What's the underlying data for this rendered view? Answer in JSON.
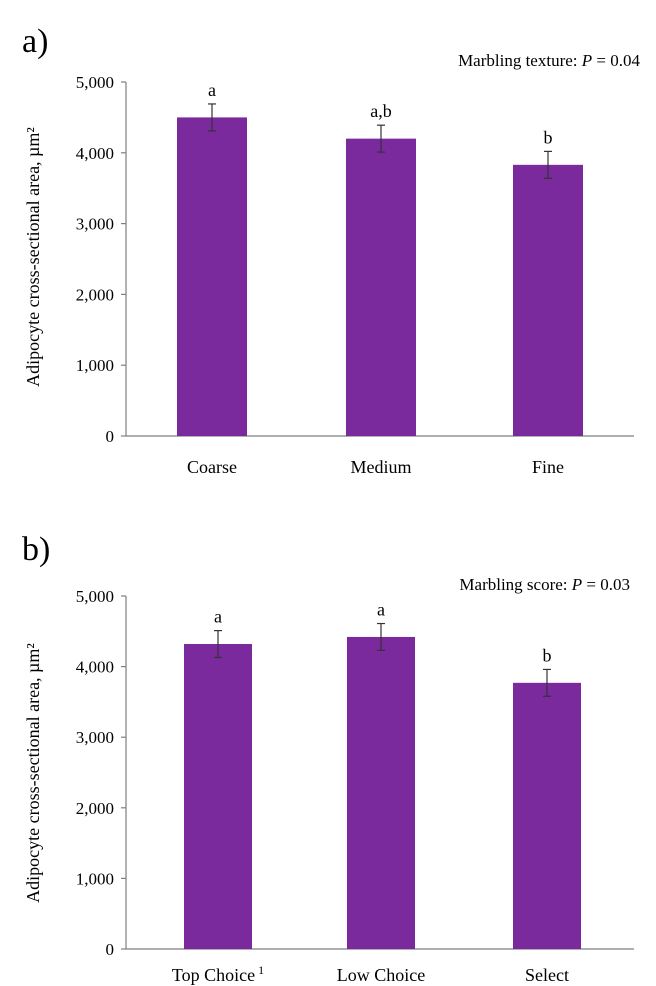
{
  "charts": [
    {
      "panel_label": "a)",
      "annotation_prefix": "Marbling texture: ",
      "annotation_p_symbol": "P",
      "annotation_p_value": " = 0.04"
    },
    {
      "panel_label": "b)",
      "annotation_prefix": "Marbling score: ",
      "annotation_p_symbol": "P",
      "annotation_p_value": " = 0.03"
    }
  ],
  "chart_data": [
    {
      "type": "bar",
      "categories": [
        "Coarse",
        "Medium",
        "Fine"
      ],
      "values": [
        4500,
        4200,
        3830
      ],
      "errors": [
        190,
        190,
        190
      ],
      "letters": [
        "a",
        "a,b",
        "b"
      ],
      "title": "",
      "xlabel": "",
      "ylabel": "Adipocyte cross-sectional area, µm²",
      "ylim": [
        0,
        5000
      ],
      "yticks": [
        0,
        1000,
        2000,
        3000,
        4000,
        5000
      ],
      "ytick_labels": [
        "0",
        "1,000",
        "2,000",
        "3,000",
        "4,000",
        "5,000"
      ],
      "grid": false,
      "bar_color": "#7B2A9E"
    },
    {
      "type": "bar",
      "categories": [
        "Top Choice",
        "Low Choice",
        "Select"
      ],
      "category_superscripts": [
        "1",
        "",
        ""
      ],
      "values": [
        4320,
        4420,
        3770
      ],
      "errors": [
        190,
        190,
        190
      ],
      "letters": [
        "a",
        "a",
        "b"
      ],
      "title": "",
      "xlabel": "",
      "ylabel": "Adipocyte cross-sectional area, µm²",
      "ylim": [
        0,
        5000
      ],
      "yticks": [
        0,
        1000,
        2000,
        3000,
        4000,
        5000
      ],
      "ytick_labels": [
        "0",
        "1,000",
        "2,000",
        "3,000",
        "4,000",
        "5,000"
      ],
      "grid": false,
      "bar_color": "#7B2A9E"
    }
  ]
}
